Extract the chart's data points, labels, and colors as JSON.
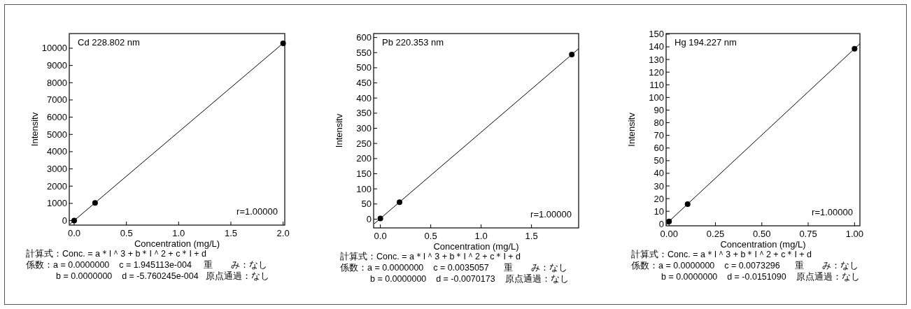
{
  "chart_data": [
    {
      "type": "scatter",
      "title": "Cd 228.802 nm",
      "xlabel": "Concentration (mg/L)",
      "ylabel": "Intensitv",
      "xlim": [
        -0.047,
        2.016
      ],
      "ylim": [
        -260,
        10850
      ],
      "xticks": [
        {
          "value": 0,
          "label": "0.0"
        },
        {
          "value": 0.5,
          "label": "0.5"
        },
        {
          "value": 1,
          "label": "1.0"
        },
        {
          "value": 1.5,
          "label": "1.5"
        },
        {
          "value": 2,
          "label": "2.0"
        }
      ],
      "yticks": [
        0,
        1000,
        2000,
        3000,
        4000,
        5000,
        6000,
        7000,
        8000,
        9000,
        10000
      ],
      "series": [
        {
          "color": "#000000",
          "x": [
            0,
            0.2,
            2.0
          ],
          "values": [
            0,
            1030,
            10280
          ]
        },
        {
          "type": "line",
          "color": "#000000",
          "x": [
            -0.04,
            2.016
          ],
          "values": [
            -200,
            10370
          ]
        }
      ],
      "annotations": [
        "r=1.00000",
        "計算式：Conc. = a＊I＾3 + b＊I＾2 + c＊I + d",
        "係数：a = 0.0000000    c = 1.945113e-004     重　　み：なし",
        "b = 0.0000000    d = -5.760245e-004   原点通過：なし"
      ]
    },
    {
      "type": "scatter",
      "title": "Pb 220.353 nm",
      "xlabel": "Concentration (mg/L)",
      "ylabel": "Intensitv",
      "xlim": [
        -0.067,
        1.968
      ],
      "ylim": [
        -29,
        613
      ],
      "xticks": [
        {
          "value": 0,
          "label": "0.0"
        },
        {
          "value": 0.5,
          "label": "0.5"
        },
        {
          "value": 1,
          "label": "1.0"
        },
        {
          "value": 1.5,
          "label": "1.5"
        }
      ],
      "yticks": [
        0,
        50,
        100,
        150,
        200,
        250,
        300,
        350,
        400,
        450,
        500,
        550,
        600
      ],
      "series": [
        {
          "color": "#000000",
          "x": [
            0,
            0.19,
            1.9
          ],
          "values": [
            2,
            56,
            544
          ]
        },
        {
          "type": "line",
          "color": "#000000",
          "x": [
            -0.06,
            1.968
          ],
          "values": [
            -15,
            563
          ]
        }
      ],
      "annotations": [
        "r=1.00000",
        "計算式：Conc. = a＊I＾3 + b＊I＾2 + c＊I + d",
        "係数：a = 0.0000000    c = 0.0035057      重　　み：なし",
        "b = 0.0000000    d = -0.0070173    原点通過：なし"
      ]
    },
    {
      "type": "scatter",
      "title": "Hg 194.227 nm",
      "xlabel": "Concentration (mg/L)",
      "ylabel": "Intensitv",
      "xlim": [
        -0.016,
        1.029
      ],
      "ylim": [
        -1.5,
        150.5
      ],
      "xticks": [
        {
          "value": 0,
          "label": "0.00"
        },
        {
          "value": 0.25,
          "label": "0.25"
        },
        {
          "value": 0.5,
          "label": "0.50"
        },
        {
          "value": 0.75,
          "label": "0.75"
        },
        {
          "value": 1,
          "label": "1.00"
        }
      ],
      "yticks": [
        0,
        10,
        20,
        30,
        40,
        50,
        60,
        70,
        80,
        90,
        100,
        110,
        120,
        130,
        140,
        150
      ],
      "series": [
        {
          "color": "#000000",
          "x": [
            0,
            0.1,
            1.0
          ],
          "values": [
            2,
            15.7,
            138.5
          ]
        },
        {
          "type": "line",
          "color": "#000000",
          "x": [
            -0.01,
            1.029
          ],
          "values": [
            0.7,
            142.5
          ]
        }
      ],
      "annotations": [
        "r=1.00000",
        "計算式：Conc. = a＊I＾3 + b＊I＾2 + c＊I + d",
        "係数：a = 0.0000000    c = 0.0073296      重　　み：なし",
        "b = 0.0000000    d = -0.0151090    原点通過：なし"
      ]
    }
  ]
}
